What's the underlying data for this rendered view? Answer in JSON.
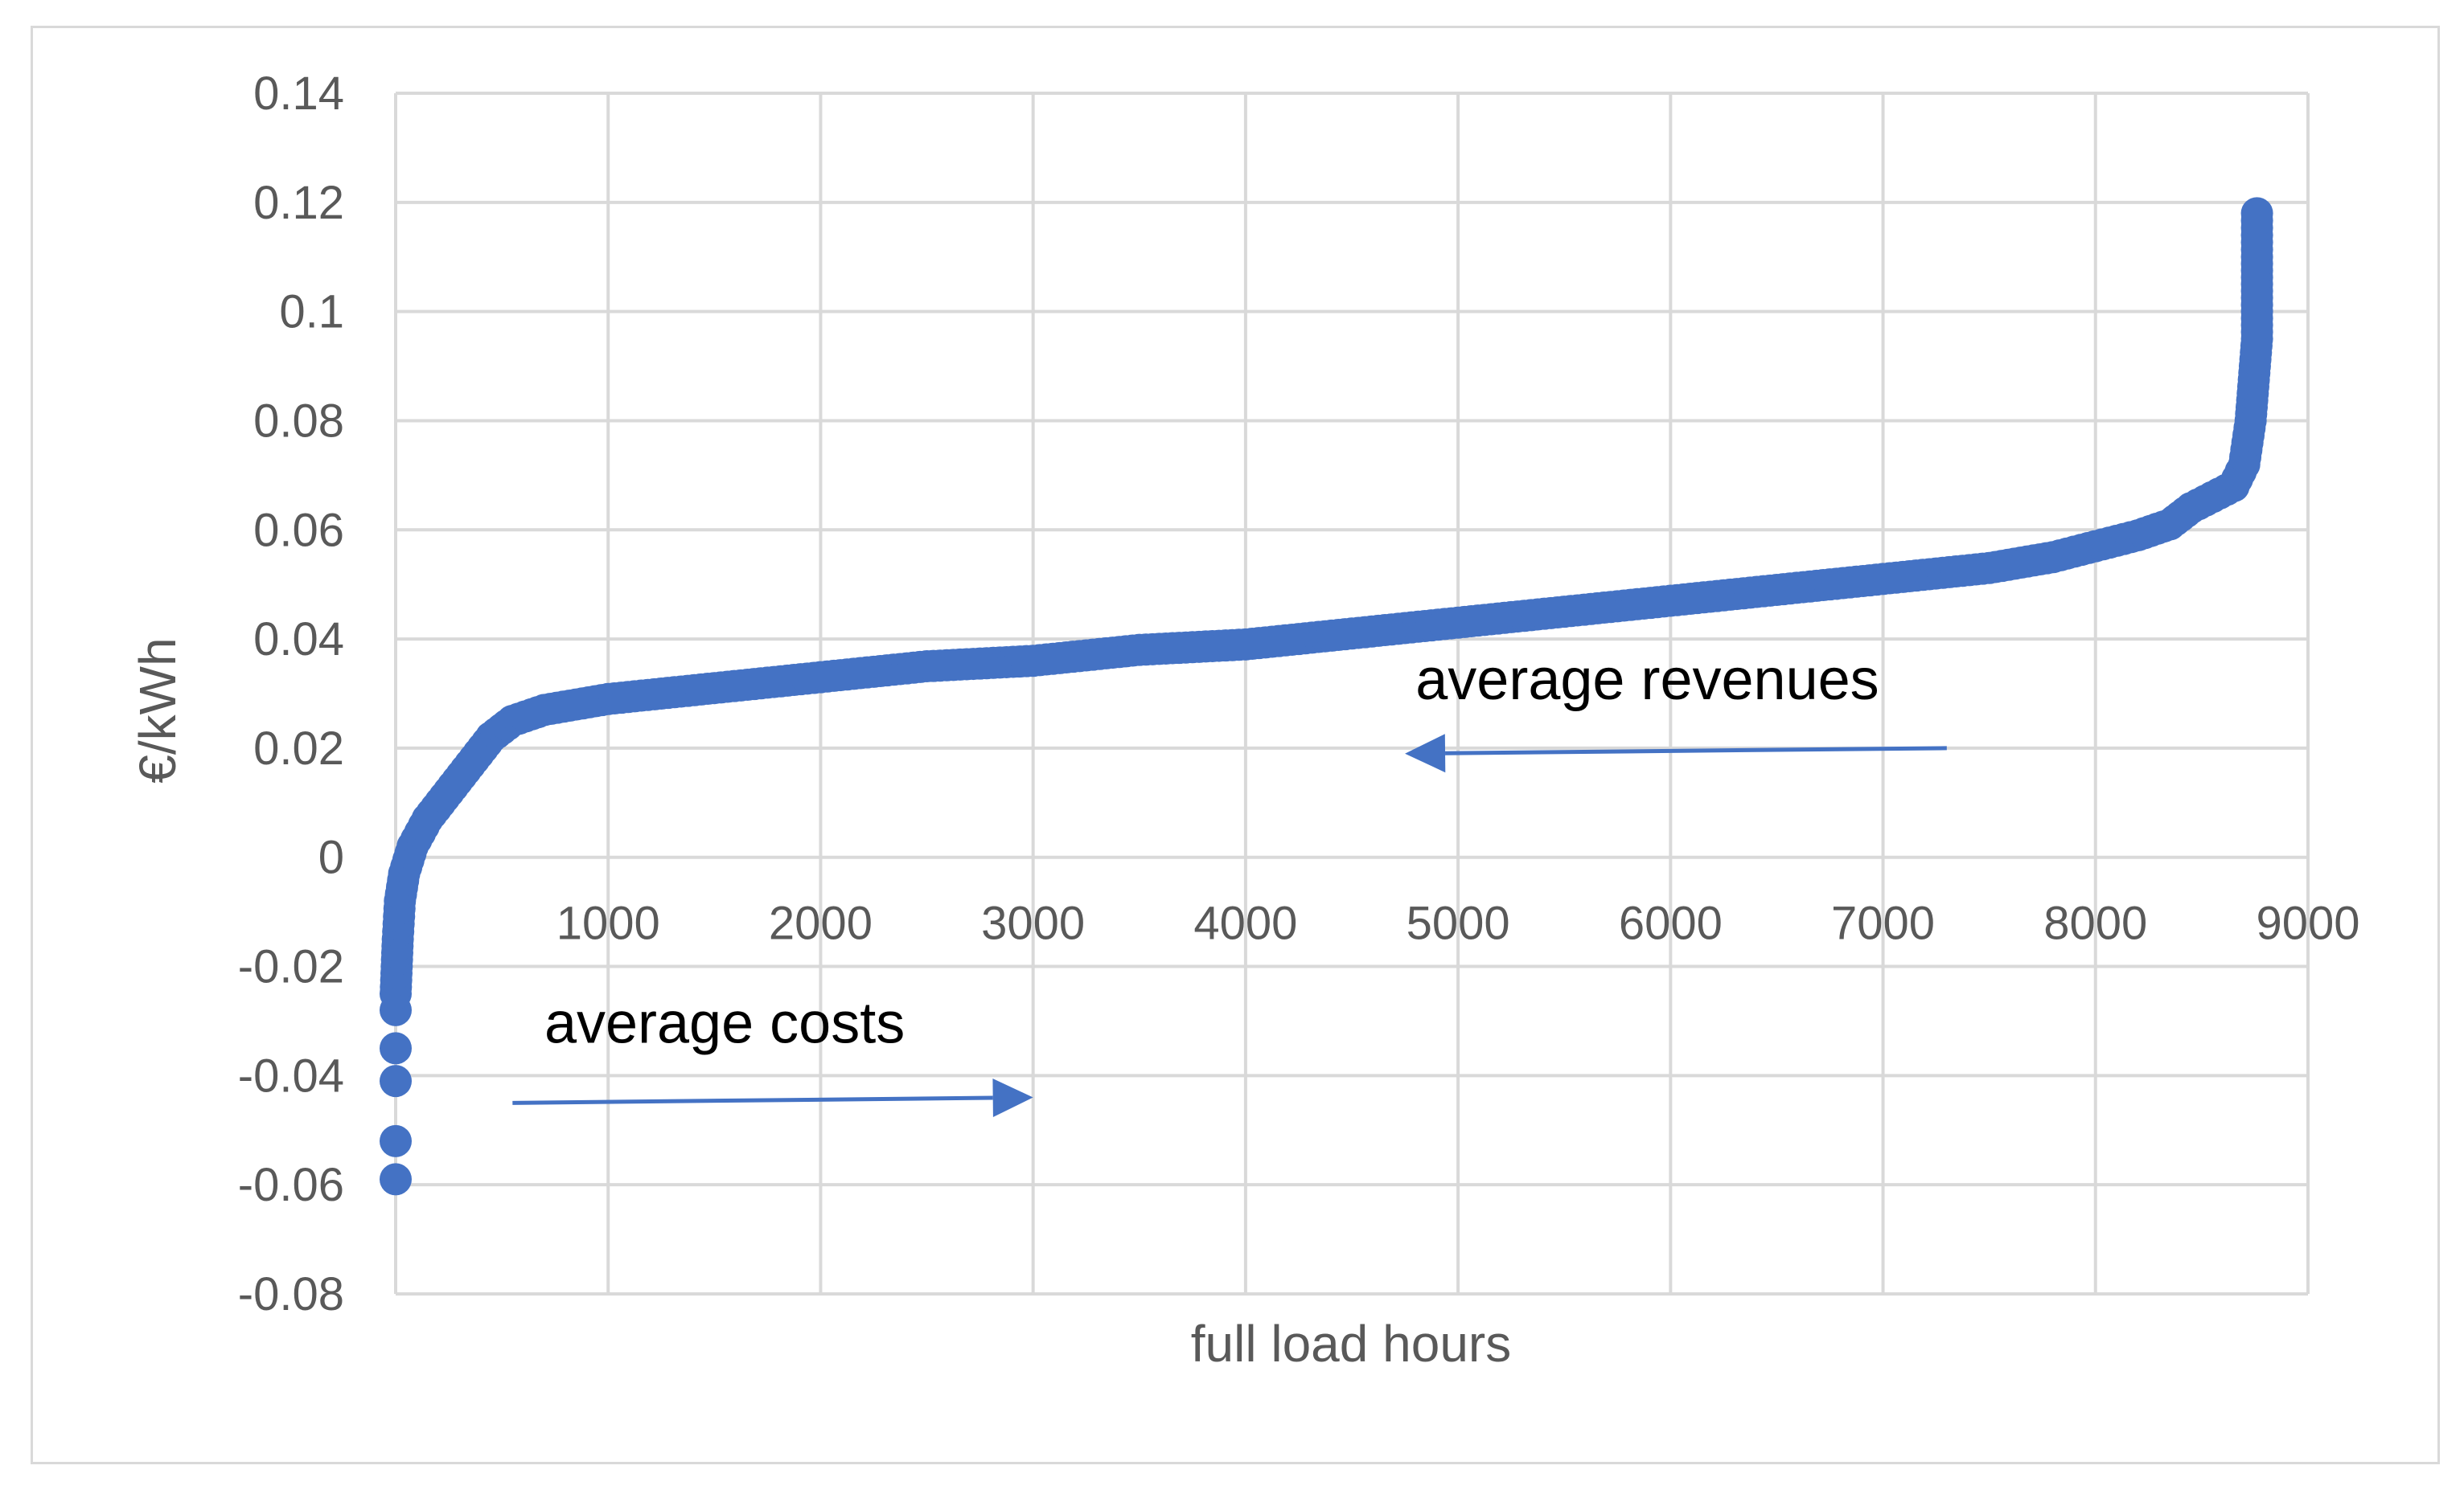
{
  "chart_data": {
    "type": "scatter",
    "title": "",
    "xlabel": "full load hours",
    "ylabel": "€/kWh",
    "xlim": [
      0,
      9000
    ],
    "ylim": [
      -0.08,
      0.14
    ],
    "x_ticks": [
      "0",
      "1000",
      "2000",
      "3000",
      "4000",
      "5000",
      "6000",
      "7000",
      "8000",
      "9000"
    ],
    "y_ticks": [
      "0.14",
      "0.12",
      "0.1",
      "0.08",
      "0.06",
      "0.04",
      "0.02",
      "0",
      "-0.02",
      "-0.04",
      "-0.06",
      "-0.08"
    ],
    "grid": true,
    "legend": "none",
    "series_color": "#4472c4",
    "series": [
      {
        "x": [
          0,
          0,
          0,
          0,
          0,
          0,
          5,
          10,
          20,
          40,
          80,
          150,
          250,
          350,
          450,
          550,
          700,
          1000,
          1500,
          2000,
          2500,
          3000,
          3500,
          4000,
          4500,
          5000,
          5500,
          6000,
          6500,
          7000,
          7500,
          7800,
          8000,
          8200,
          8350,
          8450,
          8550,
          8650,
          8700,
          8730,
          8750,
          8760,
          8760,
          8760,
          8760,
          8760
        ],
        "y": [
          -0.059,
          -0.052,
          -0.041,
          -0.035,
          -0.028,
          -0.025,
          -0.02,
          -0.015,
          -0.008,
          -0.003,
          0.002,
          0.007,
          0.012,
          0.017,
          0.022,
          0.025,
          0.027,
          0.029,
          0.031,
          0.033,
          0.035,
          0.036,
          0.038,
          0.039,
          0.041,
          0.043,
          0.045,
          0.047,
          0.049,
          0.051,
          0.053,
          0.055,
          0.057,
          0.059,
          0.061,
          0.064,
          0.066,
          0.068,
          0.072,
          0.08,
          0.09,
          0.095,
          0.1,
          0.105,
          0.11,
          0.118
        ]
      }
    ],
    "annotations": [
      {
        "text": "average revenues",
        "x": 4800,
        "y": 0.029,
        "arrow_from": [
          7300,
          0.02
        ],
        "arrow_to": [
          4750,
          0.019
        ]
      },
      {
        "text": "average costs",
        "x": 700,
        "y": -0.034,
        "arrow_from": [
          550,
          -0.045
        ],
        "arrow_to": [
          3000,
          -0.044
        ]
      }
    ]
  }
}
